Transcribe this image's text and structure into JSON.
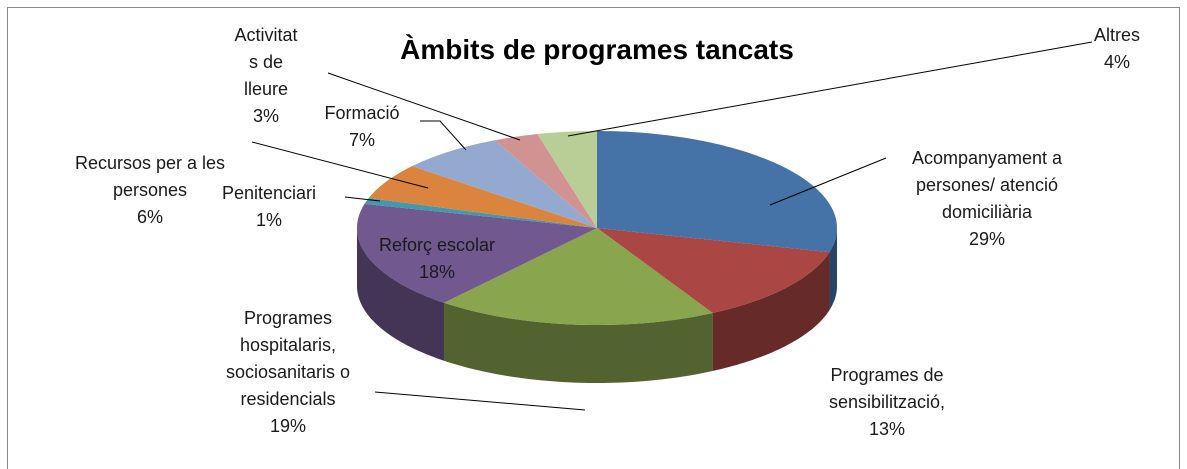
{
  "chart_data": {
    "type": "pie3d",
    "title": "Àmbits de programes tancats",
    "categories": [
      "Acompanyament a\npersones/ atenció\ndomiciliària",
      "Programes de\nsensibilització,",
      "Programes\nhospitalaris,\nsociosanitaris o\nresidencials",
      "Reforç escolar",
      "Penitenciari",
      "Recursos per a les\npersones",
      "Formació",
      "Activitat\ns de\nlleure",
      "Altres"
    ],
    "values": [
      29,
      13,
      19,
      18,
      1,
      6,
      7,
      3,
      4
    ],
    "value_labels": [
      "29%",
      "13%",
      "19%",
      "18%",
      "1%",
      "6%",
      "7%",
      "3%",
      "4%"
    ],
    "colors": [
      "#4572a7",
      "#aa4643",
      "#89a54e",
      "#71588f",
      "#4198af",
      "#db843d",
      "#93a9cf",
      "#d19392",
      "#b9cd96"
    ]
  }
}
